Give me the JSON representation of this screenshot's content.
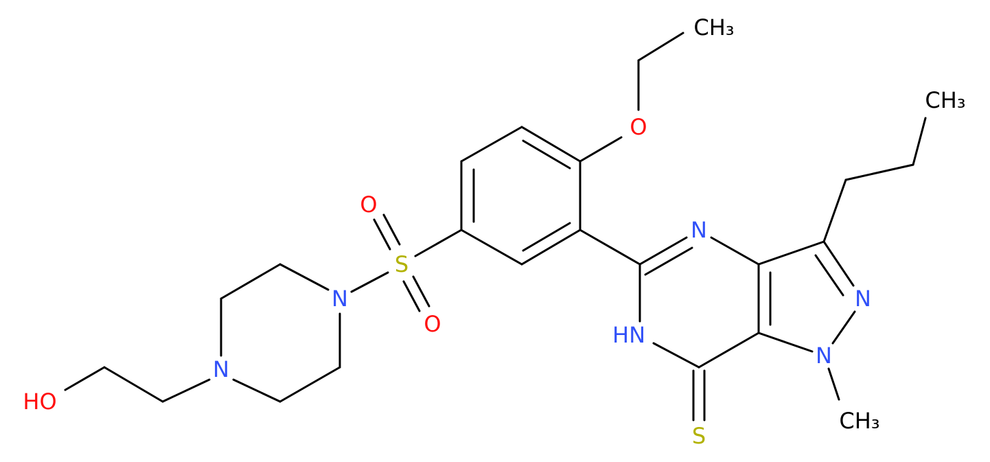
{
  "atoms": [
    {
      "label": "CH₃"
    },
    {
      "label": "O"
    },
    {
      "label": "CH₃"
    },
    {
      "label": "O"
    },
    {
      "label": "S"
    },
    {
      "label": "N"
    },
    {
      "label": "N"
    },
    {
      "label": "N"
    },
    {
      "label": "O"
    },
    {
      "label": "HN"
    },
    {
      "label": "N"
    },
    {
      "label": "N"
    },
    {
      "label": "HO"
    },
    {
      "label": "CH₃"
    },
    {
      "label": "S"
    }
  ]
}
